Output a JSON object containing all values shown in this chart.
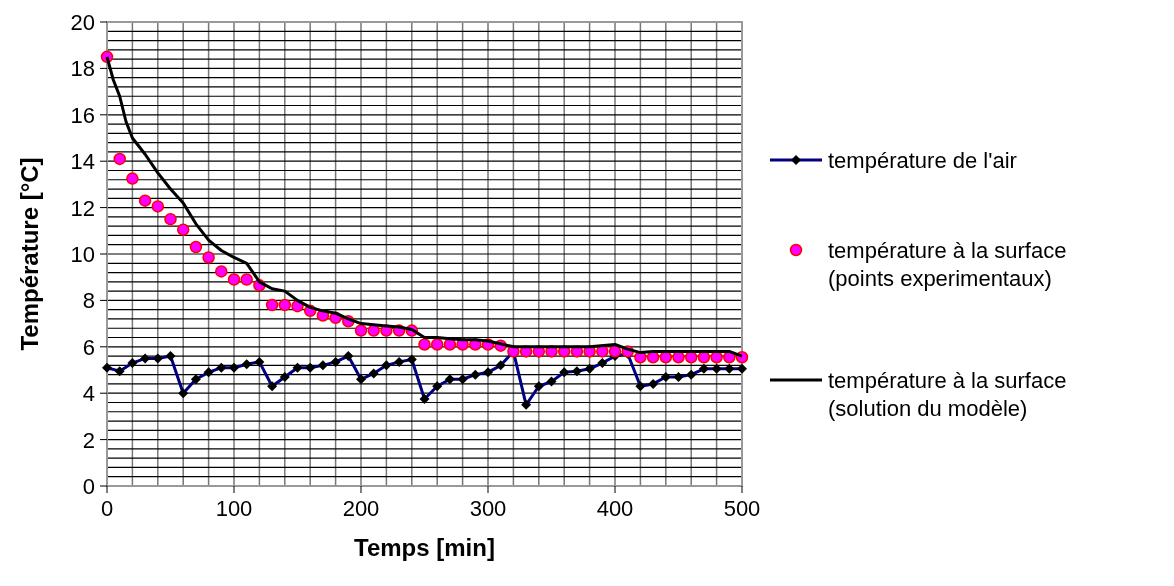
{
  "chart_data": {
    "type": "line",
    "xlabel": "Temps [min]",
    "ylabel": "Température [°C]",
    "xlim": [
      0,
      500
    ],
    "ylim": [
      0,
      20
    ],
    "xticks": [
      0,
      {
        "value": 20,
        "label": null
      },
      {
        "value": 40,
        "label": null
      },
      {
        "value": 60,
        "label": null
      },
      {
        "value": 80,
        "label": null
      },
      100,
      {
        "value": 120,
        "label": null
      },
      {
        "value": 140,
        "label": null
      },
      {
        "value": 160,
        "label": null
      },
      {
        "value": 180,
        "label": null
      },
      200,
      {
        "value": 220,
        "label": null
      },
      {
        "value": 240,
        "label": null
      },
      {
        "value": 260,
        "label": null
      },
      {
        "value": 280,
        "label": null
      },
      300,
      {
        "value": 320,
        "label": null
      },
      {
        "value": 340,
        "label": null
      },
      {
        "value": 360,
        "label": null
      },
      {
        "value": 380,
        "label": null
      },
      400,
      {
        "value": 420,
        "label": null
      },
      {
        "value": 440,
        "label": null
      },
      {
        "value": 460,
        "label": null
      },
      {
        "value": 480,
        "label": null
      },
      500
    ],
    "yticks": [
      0,
      {
        "value": 0.4,
        "label": null
      },
      {
        "value": 0.8,
        "label": null
      },
      {
        "value": 1.2,
        "label": null
      },
      {
        "value": 1.6,
        "label": null
      },
      2,
      {
        "value": 2.4,
        "label": null
      },
      {
        "value": 2.8,
        "label": null
      },
      {
        "value": 3.2,
        "label": null
      },
      {
        "value": 3.6,
        "label": null
      },
      4,
      {
        "value": 4.4,
        "label": null
      },
      {
        "value": 4.8,
        "label": null
      },
      {
        "value": 5.2,
        "label": null
      },
      {
        "value": 5.6,
        "label": null
      },
      6,
      {
        "value": 6.4,
        "label": null
      },
      {
        "value": 6.8,
        "label": null
      },
      {
        "value": 7.2,
        "label": null
      },
      {
        "value": 7.6,
        "label": null
      },
      8,
      {
        "value": 8.4,
        "label": null
      },
      {
        "value": 8.8,
        "label": null
      },
      {
        "value": 9.2,
        "label": null
      },
      {
        "value": 9.6,
        "label": null
      },
      10,
      {
        "value": 10.4,
        "label": null
      },
      {
        "value": 10.8,
        "label": null
      },
      {
        "value": 11.2,
        "label": null
      },
      {
        "value": 11.6,
        "label": null
      },
      12,
      {
        "value": 12.4,
        "label": null
      },
      {
        "value": 12.8,
        "label": null
      },
      {
        "value": 13.2,
        "label": null
      },
      {
        "value": 13.6,
        "label": null
      },
      14,
      {
        "value": 14.4,
        "label": null
      },
      {
        "value": 14.8,
        "label": null
      },
      {
        "value": 15.2,
        "label": null
      },
      {
        "value": 15.6,
        "label": null
      },
      16,
      {
        "value": 16.4,
        "label": null
      },
      {
        "value": 16.8,
        "label": null
      },
      {
        "value": 17.2,
        "label": null
      },
      {
        "value": 17.6,
        "label": null
      },
      18,
      {
        "value": 18.4,
        "label": null
      },
      {
        "value": 18.8,
        "label": null
      },
      {
        "value": 19.2,
        "label": null
      },
      {
        "value": 19.6,
        "label": null
      },
      20
    ],
    "grid": true,
    "legend": "right",
    "series": [
      {
        "name": "température de l'air",
        "marker": "diamond",
        "color": "#000080",
        "x": [
          0,
          10,
          20,
          30,
          40,
          50,
          60,
          70,
          80,
          90,
          100,
          110,
          120,
          130,
          140,
          150,
          160,
          170,
          180,
          190,
          200,
          210,
          220,
          230,
          240,
          250,
          260,
          270,
          280,
          290,
          300,
          310,
          320,
          330,
          340,
          350,
          360,
          370,
          380,
          390,
          400,
          410,
          420,
          430,
          440,
          450,
          460,
          470,
          480,
          490,
          500
        ],
        "values": [
          5.1,
          4.95,
          5.3,
          5.5,
          5.5,
          5.6,
          4.0,
          4.6,
          4.9,
          5.1,
          5.1,
          5.25,
          5.35,
          4.3,
          4.7,
          5.1,
          5.1,
          5.2,
          5.35,
          5.6,
          4.6,
          4.85,
          5.2,
          5.35,
          5.45,
          3.75,
          4.3,
          4.6,
          4.6,
          4.8,
          4.9,
          5.2,
          5.8,
          3.5,
          4.3,
          4.5,
          4.9,
          4.95,
          5.05,
          5.3,
          5.6,
          5.7,
          4.3,
          4.4,
          4.7,
          4.7,
          4.8,
          5.05,
          5.05,
          5.05,
          5.05
        ]
      },
      {
        "name": "température à la surface\n(points experimentaux)",
        "type": "scatter",
        "marker": "circle",
        "color": "#ff00ff",
        "x": [
          0,
          10,
          20,
          30,
          40,
          50,
          60,
          70,
          80,
          90,
          100,
          110,
          120,
          130,
          140,
          150,
          160,
          170,
          180,
          190,
          200,
          210,
          220,
          230,
          240,
          250,
          260,
          270,
          280,
          290,
          300,
          310,
          320,
          330,
          340,
          350,
          360,
          370,
          380,
          390,
          400,
          410,
          420,
          430,
          440,
          450,
          460,
          470,
          480,
          490,
          500
        ],
        "values": [
          18.5,
          14.1,
          13.25,
          12.3,
          12.05,
          11.5,
          11.05,
          10.3,
          9.85,
          9.25,
          8.9,
          8.9,
          8.65,
          7.8,
          7.8,
          7.75,
          7.55,
          7.35,
          7.25,
          7.1,
          6.7,
          6.7,
          6.7,
          6.7,
          6.7,
          6.1,
          6.1,
          6.1,
          6.1,
          6.1,
          6.1,
          6.05,
          5.8,
          5.8,
          5.8,
          5.8,
          5.8,
          5.8,
          5.8,
          5.8,
          5.8,
          5.8,
          5.55,
          5.55,
          5.55,
          5.55,
          5.55,
          5.55,
          5.55,
          5.55,
          5.55
        ]
      },
      {
        "name": "température à la surface\n(solution du modèle)",
        "marker": "none",
        "color": "#000000",
        "x": [
          0,
          5,
          10,
          15,
          20,
          30,
          40,
          50,
          60,
          70,
          80,
          90,
          100,
          110,
          120,
          130,
          140,
          150,
          160,
          170,
          180,
          190,
          200,
          210,
          220,
          230,
          240,
          250,
          260,
          270,
          280,
          290,
          300,
          320,
          340,
          380,
          400,
          410,
          420,
          430,
          490,
          500
        ],
        "values": [
          18.5,
          17.5,
          16.8,
          15.7,
          15.0,
          14.3,
          13.5,
          12.8,
          12.2,
          11.3,
          10.6,
          10.15,
          9.85,
          9.6,
          8.8,
          8.5,
          8.4,
          8.0,
          7.7,
          7.55,
          7.45,
          7.2,
          7.0,
          6.95,
          6.9,
          6.85,
          6.75,
          6.4,
          6.4,
          6.35,
          6.3,
          6.3,
          6.25,
          6.0,
          6.0,
          6.0,
          6.1,
          5.9,
          5.75,
          5.8,
          5.8,
          5.6
        ]
      }
    ]
  }
}
